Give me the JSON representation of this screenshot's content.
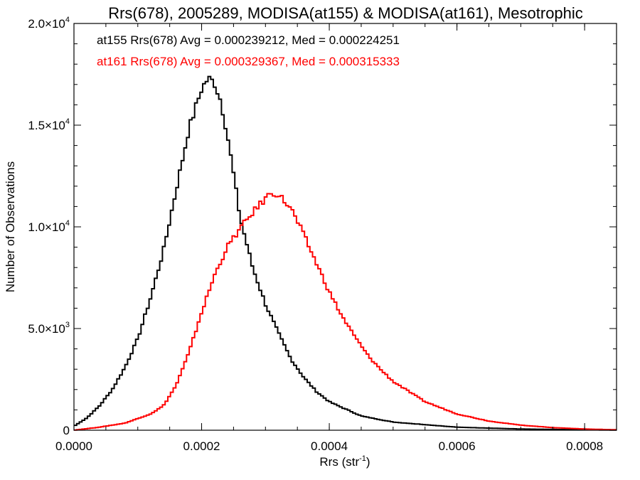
{
  "chart_data": {
    "type": "line",
    "title": "Rrs(678), 2005289, MODISA(at155) & MODISA(at161), Mesotrophic",
    "xlabel_main": "Rrs (str",
    "xlabel_sup": "-1",
    "xlabel_close": ")",
    "ylabel": "Number of Observations",
    "xlim": [
      0,
      0.00085
    ],
    "ylim": [
      0,
      20000
    ],
    "x_ticks": [
      {
        "value": 0,
        "label": "0.0000"
      },
      {
        "value": 0.0002,
        "label": "0.0002"
      },
      {
        "value": 0.0004,
        "label": "0.0004"
      },
      {
        "value": 0.0006,
        "label": "0.0006"
      },
      {
        "value": 0.0008,
        "label": "0.0008"
      }
    ],
    "y_ticks": [
      {
        "value": 0,
        "mant": "0",
        "exp": ""
      },
      {
        "value": 5000,
        "mant": "5.0×10",
        "exp": "3"
      },
      {
        "value": 10000,
        "mant": "1.0×10",
        "exp": "4"
      },
      {
        "value": 15000,
        "mant": "1.5×10",
        "exp": "4"
      },
      {
        "value": 20000,
        "mant": "2.0×10",
        "exp": "4"
      }
    ],
    "annotations": [
      {
        "text": "at155 Rrs(678) Avg = 0.000239212, Med = 0.000224251",
        "color": "#000000"
      },
      {
        "text": "at161 Rrs(678) Avg = 0.000329367, Med = 0.000315333",
        "color": "#ff0000"
      }
    ],
    "series": [
      {
        "name": "at155",
        "color": "#000000",
        "points": [
          [
            0.0,
            200
          ],
          [
            2e-05,
            600
          ],
          [
            4e-05,
            1200
          ],
          [
            6e-05,
            2000
          ],
          [
            8e-05,
            3100
          ],
          [
            0.0001,
            4500
          ],
          [
            0.00012,
            6500
          ],
          [
            0.00014,
            8800
          ],
          [
            0.00016,
            11800
          ],
          [
            0.00018,
            14800
          ],
          [
            0.0002,
            16800
          ],
          [
            0.00021,
            17300
          ],
          [
            0.00022,
            17100
          ],
          [
            0.00023,
            16200
          ],
          [
            0.00024,
            14600
          ],
          [
            0.00025,
            12600
          ],
          [
            0.00026,
            10500
          ],
          [
            0.00028,
            8000
          ],
          [
            0.0003,
            6200
          ],
          [
            0.00032,
            4800
          ],
          [
            0.00034,
            3500
          ],
          [
            0.00036,
            2600
          ],
          [
            0.00038,
            1900
          ],
          [
            0.0004,
            1400
          ],
          [
            0.00045,
            700
          ],
          [
            0.0005,
            400
          ],
          [
            0.0006,
            150
          ],
          [
            0.0007,
            60
          ],
          [
            0.0008,
            20
          ],
          [
            0.00085,
            10
          ]
        ]
      },
      {
        "name": "at161",
        "color": "#ff0000",
        "points": [
          [
            0.0,
            0
          ],
          [
            4e-05,
            150
          ],
          [
            8e-05,
            350
          ],
          [
            0.00012,
            800
          ],
          [
            0.00014,
            1200
          ],
          [
            0.00016,
            2200
          ],
          [
            0.00018,
            3800
          ],
          [
            0.0002,
            5800
          ],
          [
            0.00022,
            7600
          ],
          [
            0.00024,
            9000
          ],
          [
            0.00026,
            9900
          ],
          [
            0.00028,
            10700
          ],
          [
            0.0003,
            11400
          ],
          [
            0.00031,
            11700
          ],
          [
            0.00032,
            11600
          ],
          [
            0.00034,
            10900
          ],
          [
            0.00036,
            9600
          ],
          [
            0.00038,
            8200
          ],
          [
            0.0004,
            6800
          ],
          [
            0.00042,
            5600
          ],
          [
            0.00044,
            4600
          ],
          [
            0.00046,
            3700
          ],
          [
            0.00048,
            3000
          ],
          [
            0.0005,
            2400
          ],
          [
            0.00055,
            1400
          ],
          [
            0.0006,
            800
          ],
          [
            0.00065,
            450
          ],
          [
            0.0007,
            250
          ],
          [
            0.00075,
            130
          ],
          [
            0.0008,
            60
          ],
          [
            0.00085,
            20
          ]
        ]
      }
    ]
  }
}
